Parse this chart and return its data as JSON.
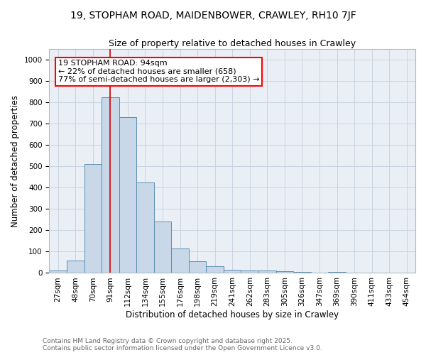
{
  "title1": "19, STOPHAM ROAD, MAIDENBOWER, CRAWLEY, RH10 7JF",
  "title2": "Size of property relative to detached houses in Crawley",
  "xlabel": "Distribution of detached houses by size in Crawley",
  "ylabel": "Number of detached properties",
  "bar_color": "#c8d8e8",
  "bar_edge_color": "#5b8db0",
  "bar_edge_width": 0.7,
  "categories": [
    "27sqm",
    "48sqm",
    "70sqm",
    "91sqm",
    "112sqm",
    "134sqm",
    "155sqm",
    "176sqm",
    "198sqm",
    "219sqm",
    "241sqm",
    "262sqm",
    "283sqm",
    "305sqm",
    "326sqm",
    "347sqm",
    "369sqm",
    "390sqm",
    "411sqm",
    "433sqm",
    "454sqm"
  ],
  "values": [
    10,
    57,
    510,
    825,
    730,
    425,
    240,
    115,
    55,
    32,
    15,
    12,
    13,
    8,
    4,
    0,
    5,
    0,
    0,
    0,
    0
  ],
  "red_line_index": 3,
  "ylim": [
    0,
    1050
  ],
  "yticks": [
    0,
    100,
    200,
    300,
    400,
    500,
    600,
    700,
    800,
    900,
    1000
  ],
  "annotation_line1": "19 STOPHAM ROAD: 94sqm",
  "annotation_line2": "← 22% of detached houses are smaller (658)",
  "annotation_line3": "77% of semi-detached houses are larger (2,303) →",
  "red_line_color": "#cc0000",
  "grid_color": "#c8d4e0",
  "background_color": "#eaeff5",
  "footnote": "Contains HM Land Registry data © Crown copyright and database right 2025.\nContains public sector information licensed under the Open Government Licence v3.0.",
  "title1_fontsize": 10,
  "title2_fontsize": 9,
  "axis_label_fontsize": 8.5,
  "tick_fontsize": 7.5,
  "annotation_fontsize": 8,
  "footnote_fontsize": 6.5
}
